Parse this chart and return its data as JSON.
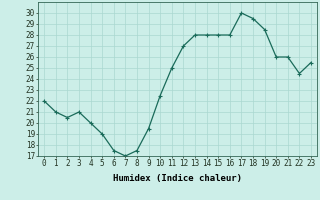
{
  "x": [
    0,
    1,
    2,
    3,
    4,
    5,
    6,
    7,
    8,
    9,
    10,
    11,
    12,
    13,
    14,
    15,
    16,
    17,
    18,
    19,
    20,
    21,
    22,
    23
  ],
  "y": [
    22,
    21,
    20.5,
    21,
    20,
    19,
    17.5,
    17,
    17.5,
    19.5,
    22.5,
    25,
    27,
    28,
    28,
    28,
    28,
    30,
    29.5,
    28.5,
    26,
    26,
    24.5,
    25.5
  ],
  "line_color": "#1a6b5a",
  "marker": "+",
  "marker_size": 3,
  "bg_color": "#cceee8",
  "grid_color": "#aad8d0",
  "xlabel": "Humidex (Indice chaleur)",
  "xlim": [
    -0.5,
    23.5
  ],
  "ylim": [
    17,
    31
  ],
  "yticks": [
    17,
    18,
    19,
    20,
    21,
    22,
    23,
    24,
    25,
    26,
    27,
    28,
    29,
    30
  ],
  "xticks": [
    0,
    1,
    2,
    3,
    4,
    5,
    6,
    7,
    8,
    9,
    10,
    11,
    12,
    13,
    14,
    15,
    16,
    17,
    18,
    19,
    20,
    21,
    22,
    23
  ],
  "tick_label_fontsize": 5.5,
  "xlabel_fontsize": 6.5,
  "xlabel_fontweight": "bold",
  "line_width": 0.9,
  "marker_edge_width": 0.8
}
